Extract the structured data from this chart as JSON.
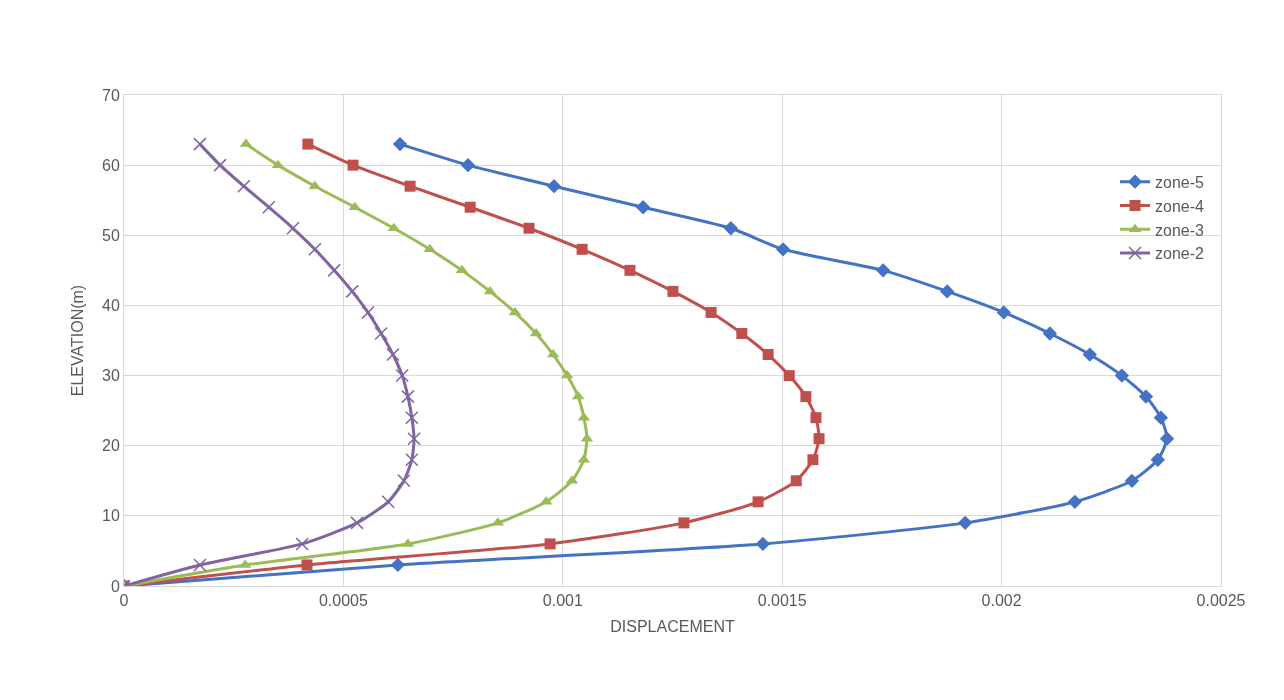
{
  "chart_data": {
    "type": "line",
    "xlabel": "DISPLACEMENT",
    "ylabel": "ELEVATION(m)",
    "xlim": [
      0,
      0.0025
    ],
    "xticks": [
      0,
      0.0005,
      0.001,
      0.0015,
      0.002,
      0.0025
    ],
    "ylim": [
      0,
      70
    ],
    "yticks": [
      0,
      10,
      20,
      30,
      40,
      50,
      60,
      70
    ],
    "grid": true,
    "legend": "right",
    "series": [
      {
        "name": "zone-5",
        "color": "#4472c4",
        "marker": "diamond",
        "x": [
          0,
          0.000624,
          0.001456,
          0.001917,
          0.002167,
          0.002297,
          0.002356,
          0.002377,
          0.002363,
          0.002329,
          0.002274,
          0.002201,
          0.00211,
          0.002005,
          0.001876,
          0.00173,
          0.001502,
          0.001383,
          0.001183,
          0.00098,
          0.000784,
          0.000629
        ],
        "values": [
          0,
          3,
          6,
          9,
          12,
          15,
          18,
          21,
          24,
          27,
          30,
          33,
          36,
          39,
          42,
          45,
          48,
          51,
          54,
          57,
          60,
          63
        ]
      },
      {
        "name": "zone-4",
        "color": "#c0504d",
        "marker": "square",
        "x": [
          0,
          0.000417,
          0.000971,
          0.001276,
          0.001445,
          0.001532,
          0.00157,
          0.001584,
          0.001577,
          0.001554,
          0.001516,
          0.001468,
          0.001408,
          0.001338,
          0.001251,
          0.001153,
          0.001044,
          0.000923,
          0.000789,
          0.000652,
          0.000522,
          0.000419
        ],
        "values": [
          0,
          3,
          6,
          9,
          12,
          15,
          18,
          21,
          24,
          27,
          30,
          33,
          36,
          39,
          42,
          45,
          48,
          51,
          54,
          57,
          60,
          63
        ]
      },
      {
        "name": "zone-3",
        "color": "#9bbb59",
        "marker": "triangle",
        "x": [
          0,
          0.000276,
          0.000647,
          0.000852,
          0.000962,
          0.001021,
          0.001048,
          0.001055,
          0.001048,
          0.001035,
          0.00101,
          0.000978,
          0.000939,
          0.000891,
          0.000834,
          0.00077,
          0.000697,
          0.000615,
          0.000526,
          0.000435,
          0.000351,
          0.000278
        ],
        "values": [
          0,
          3,
          6,
          9,
          12,
          15,
          18,
          21,
          24,
          27,
          30,
          33,
          36,
          39,
          42,
          45,
          48,
          51,
          54,
          57,
          60,
          63
        ]
      },
      {
        "name": "zone-2",
        "color": "#8064a2",
        "marker": "cross",
        "x": [
          0,
          0.000173,
          0.000406,
          0.000531,
          0.000602,
          0.000638,
          0.000656,
          0.000661,
          0.000656,
          0.000647,
          0.000634,
          0.000613,
          0.000586,
          0.000556,
          0.00052,
          0.000479,
          0.000435,
          0.000385,
          0.00033,
          0.000273,
          0.000219,
          0.000173
        ],
        "values": [
          0,
          3,
          6,
          9,
          12,
          15,
          18,
          21,
          24,
          27,
          30,
          33,
          36,
          39,
          42,
          45,
          48,
          51,
          54,
          57,
          60,
          63
        ]
      }
    ]
  }
}
